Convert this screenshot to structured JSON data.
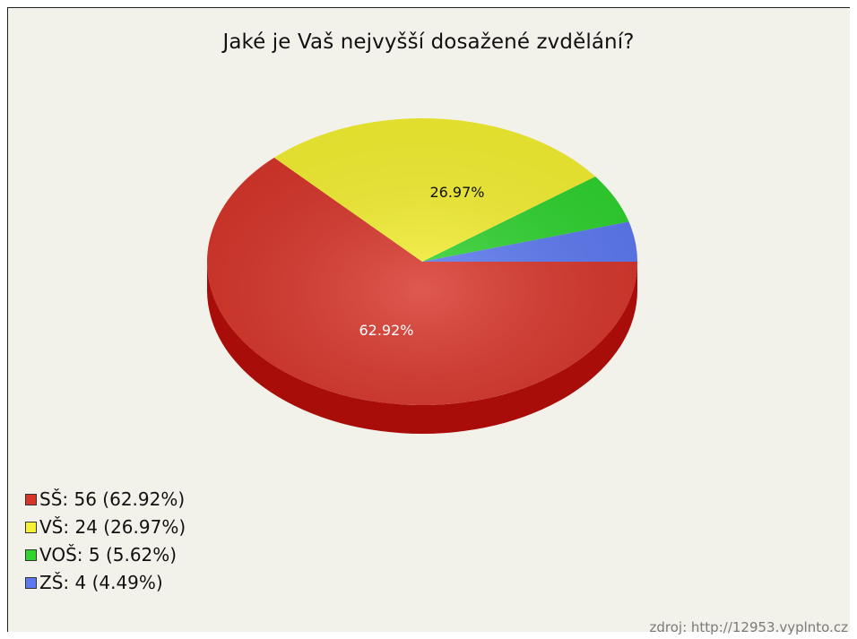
{
  "chart_data": {
    "type": "pie",
    "title": "Jaké je Vaš nejvyšší dosažené zvdělání?",
    "slices": [
      {
        "label": "SŠ",
        "value": 56,
        "percent": "62.92%",
        "legend": "SŠ: 56 (62.92%)",
        "color": "#d8352a",
        "side_color": "#a80d0a",
        "label_color": "#ffffff",
        "show_label": true
      },
      {
        "label": "VŠ",
        "value": 24,
        "percent": "26.97%",
        "legend": "VŠ: 24 (26.97%)",
        "color": "#f6f132",
        "side_color": "#c7c00a",
        "label_color": "#111111",
        "show_label": true
      },
      {
        "label": "VOŠ",
        "value": 5,
        "percent": "5.62%",
        "legend": "VOŠ: 5 (5.62%)",
        "color": "#2fd42f",
        "side_color": "#179317",
        "label_color": "#111111",
        "show_label": false
      },
      {
        "label": "ZŠ",
        "value": 4,
        "percent": "4.49%",
        "legend": "ZŠ: 4 (4.49%)",
        "color": "#5c79f2",
        "side_color": "#3046b0",
        "label_color": "#111111",
        "show_label": false
      }
    ],
    "legend_position": "bottom-left",
    "three_d": true
  },
  "source": "zdroj: http://12953.vyplnto.cz"
}
